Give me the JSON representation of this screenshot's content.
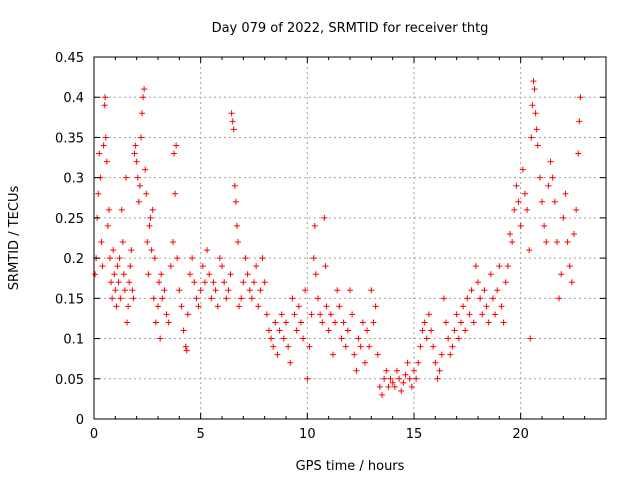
{
  "chart_data": {
    "type": "scatter",
    "title": "Day 079 of 2022, SRMTID for receiver thtg",
    "xlabel": "GPS time / hours",
    "ylabel": "SRMTID / TECUs",
    "xlim": [
      0,
      24
    ],
    "ylim": [
      0,
      0.45
    ],
    "x_ticks": [
      0,
      5,
      10,
      15,
      20
    ],
    "x_tick_labels": [
      "0",
      "5",
      "10",
      "15",
      "20"
    ],
    "y_ticks": [
      0,
      0.05,
      0.1,
      0.15,
      0.2,
      0.25,
      0.3,
      0.35,
      0.4,
      0.45
    ],
    "y_tick_labels": [
      "0",
      "0.05",
      "0.1",
      "0.15",
      "0.2",
      "0.25",
      "0.3",
      "0.35",
      "0.4",
      "0.45"
    ],
    "grid": true,
    "marker": "+",
    "series": [
      {
        "name": "SRMTID",
        "color": "#ff0000",
        "points": [
          [
            0.05,
            0.18
          ],
          [
            0.1,
            0.2
          ],
          [
            0.15,
            0.25
          ],
          [
            0.2,
            0.28
          ],
          [
            0.25,
            0.33
          ],
          [
            0.3,
            0.3
          ],
          [
            0.35,
            0.22
          ],
          [
            0.4,
            0.19
          ],
          [
            0.45,
            0.34
          ],
          [
            0.5,
            0.39
          ],
          [
            0.52,
            0.4
          ],
          [
            0.55,
            0.35
          ],
          [
            0.6,
            0.32
          ],
          [
            0.65,
            0.24
          ],
          [
            0.7,
            0.26
          ],
          [
            0.75,
            0.2
          ],
          [
            0.8,
            0.17
          ],
          [
            0.85,
            0.15
          ],
          [
            0.9,
            0.21
          ],
          [
            0.95,
            0.18
          ],
          [
            1.0,
            0.16
          ],
          [
            1.05,
            0.14
          ],
          [
            1.1,
            0.19
          ],
          [
            1.15,
            0.17
          ],
          [
            1.2,
            0.2
          ],
          [
            1.25,
            0.15
          ],
          [
            1.3,
            0.26
          ],
          [
            1.35,
            0.22
          ],
          [
            1.4,
            0.18
          ],
          [
            1.45,
            0.16
          ],
          [
            1.5,
            0.3
          ],
          [
            1.55,
            0.12
          ],
          [
            1.6,
            0.14
          ],
          [
            1.65,
            0.17
          ],
          [
            1.7,
            0.19
          ],
          [
            1.75,
            0.21
          ],
          [
            1.8,
            0.16
          ],
          [
            1.85,
            0.15
          ],
          [
            1.9,
            0.33
          ],
          [
            1.95,
            0.34
          ],
          [
            2.0,
            0.32
          ],
          [
            2.05,
            0.3
          ],
          [
            2.1,
            0.27
          ],
          [
            2.15,
            0.29
          ],
          [
            2.2,
            0.35
          ],
          [
            2.25,
            0.38
          ],
          [
            2.3,
            0.4
          ],
          [
            2.35,
            0.41
          ],
          [
            2.4,
            0.31
          ],
          [
            2.45,
            0.28
          ],
          [
            2.5,
            0.22
          ],
          [
            2.55,
            0.18
          ],
          [
            2.6,
            0.24
          ],
          [
            2.65,
            0.25
          ],
          [
            2.7,
            0.21
          ],
          [
            2.75,
            0.26
          ],
          [
            2.8,
            0.15
          ],
          [
            2.85,
            0.2
          ],
          [
            2.9,
            0.12
          ],
          [
            3.0,
            0.14
          ],
          [
            3.05,
            0.17
          ],
          [
            3.1,
            0.1
          ],
          [
            3.15,
            0.18
          ],
          [
            3.2,
            0.15
          ],
          [
            3.3,
            0.16
          ],
          [
            3.4,
            0.13
          ],
          [
            3.5,
            0.12
          ],
          [
            3.6,
            0.19
          ],
          [
            3.7,
            0.22
          ],
          [
            3.75,
            0.33
          ],
          [
            3.8,
            0.28
          ],
          [
            3.85,
            0.34
          ],
          [
            3.9,
            0.2
          ],
          [
            4.0,
            0.16
          ],
          [
            4.1,
            0.14
          ],
          [
            4.2,
            0.11
          ],
          [
            4.3,
            0.09
          ],
          [
            4.35,
            0.085
          ],
          [
            4.4,
            0.13
          ],
          [
            4.5,
            0.18
          ],
          [
            4.6,
            0.2
          ],
          [
            4.7,
            0.17
          ],
          [
            4.8,
            0.15
          ],
          [
            4.9,
            0.14
          ],
          [
            5.0,
            0.16
          ],
          [
            5.1,
            0.19
          ],
          [
            5.2,
            0.17
          ],
          [
            5.3,
            0.21
          ],
          [
            5.4,
            0.18
          ],
          [
            5.5,
            0.15
          ],
          [
            5.6,
            0.17
          ],
          [
            5.7,
            0.16
          ],
          [
            5.8,
            0.14
          ],
          [
            5.9,
            0.2
          ],
          [
            6.0,
            0.19
          ],
          [
            6.1,
            0.17
          ],
          [
            6.2,
            0.15
          ],
          [
            6.3,
            0.16
          ],
          [
            6.4,
            0.18
          ],
          [
            6.45,
            0.38
          ],
          [
            6.5,
            0.37
          ],
          [
            6.55,
            0.36
          ],
          [
            6.6,
            0.29
          ],
          [
            6.65,
            0.27
          ],
          [
            6.7,
            0.24
          ],
          [
            6.75,
            0.22
          ],
          [
            6.8,
            0.14
          ],
          [
            6.9,
            0.15
          ],
          [
            7.0,
            0.17
          ],
          [
            7.1,
            0.2
          ],
          [
            7.2,
            0.18
          ],
          [
            7.3,
            0.16
          ],
          [
            7.4,
            0.15
          ],
          [
            7.5,
            0.17
          ],
          [
            7.6,
            0.19
          ],
          [
            7.7,
            0.14
          ],
          [
            7.8,
            0.16
          ],
          [
            7.9,
            0.2
          ],
          [
            8.0,
            0.17
          ],
          [
            8.1,
            0.13
          ],
          [
            8.2,
            0.11
          ],
          [
            8.3,
            0.1
          ],
          [
            8.4,
            0.09
          ],
          [
            8.5,
            0.12
          ],
          [
            8.6,
            0.08
          ],
          [
            8.7,
            0.11
          ],
          [
            8.8,
            0.13
          ],
          [
            8.9,
            0.1
          ],
          [
            9.0,
            0.12
          ],
          [
            9.1,
            0.09
          ],
          [
            9.2,
            0.07
          ],
          [
            9.3,
            0.15
          ],
          [
            9.4,
            0.13
          ],
          [
            9.5,
            0.11
          ],
          [
            9.6,
            0.14
          ],
          [
            9.7,
            0.12
          ],
          [
            9.8,
            0.1
          ],
          [
            9.9,
            0.16
          ],
          [
            10.0,
            0.05
          ],
          [
            10.1,
            0.09
          ],
          [
            10.2,
            0.13
          ],
          [
            10.3,
            0.2
          ],
          [
            10.35,
            0.24
          ],
          [
            10.4,
            0.18
          ],
          [
            10.5,
            0.15
          ],
          [
            10.6,
            0.13
          ],
          [
            10.7,
            0.12
          ],
          [
            10.8,
            0.25
          ],
          [
            10.85,
            0.19
          ],
          [
            10.9,
            0.14
          ],
          [
            11.0,
            0.11
          ],
          [
            11.1,
            0.13
          ],
          [
            11.2,
            0.08
          ],
          [
            11.3,
            0.12
          ],
          [
            11.4,
            0.16
          ],
          [
            11.5,
            0.14
          ],
          [
            11.6,
            0.1
          ],
          [
            11.7,
            0.12
          ],
          [
            11.8,
            0.09
          ],
          [
            11.9,
            0.11
          ],
          [
            12.0,
            0.16
          ],
          [
            12.1,
            0.13
          ],
          [
            12.2,
            0.08
          ],
          [
            12.3,
            0.06
          ],
          [
            12.4,
            0.1
          ],
          [
            12.5,
            0.09
          ],
          [
            12.6,
            0.12
          ],
          [
            12.7,
            0.07
          ],
          [
            12.8,
            0.11
          ],
          [
            12.9,
            0.09
          ],
          [
            13.0,
            0.16
          ],
          [
            13.1,
            0.12
          ],
          [
            13.2,
            0.14
          ],
          [
            13.3,
            0.08
          ],
          [
            13.4,
            0.04
          ],
          [
            13.5,
            0.03
          ],
          [
            13.6,
            0.05
          ],
          [
            13.7,
            0.06
          ],
          [
            13.8,
            0.04
          ],
          [
            13.9,
            0.05
          ],
          [
            14.0,
            0.045
          ],
          [
            14.1,
            0.04
          ],
          [
            14.2,
            0.06
          ],
          [
            14.3,
            0.05
          ],
          [
            14.4,
            0.035
          ],
          [
            14.5,
            0.045
          ],
          [
            14.6,
            0.055
          ],
          [
            14.7,
            0.07
          ],
          [
            14.8,
            0.05
          ],
          [
            14.9,
            0.04
          ],
          [
            15.0,
            0.06
          ],
          [
            15.1,
            0.05
          ],
          [
            15.2,
            0.07
          ],
          [
            15.3,
            0.09
          ],
          [
            15.4,
            0.11
          ],
          [
            15.5,
            0.12
          ],
          [
            15.6,
            0.1
          ],
          [
            15.7,
            0.13
          ],
          [
            15.8,
            0.11
          ],
          [
            15.9,
            0.09
          ],
          [
            16.0,
            0.07
          ],
          [
            16.1,
            0.05
          ],
          [
            16.2,
            0.06
          ],
          [
            16.3,
            0.08
          ],
          [
            16.4,
            0.15
          ],
          [
            16.5,
            0.12
          ],
          [
            16.6,
            0.1
          ],
          [
            16.7,
            0.08
          ],
          [
            16.8,
            0.09
          ],
          [
            16.9,
            0.11
          ],
          [
            17.0,
            0.13
          ],
          [
            17.1,
            0.1
          ],
          [
            17.2,
            0.12
          ],
          [
            17.3,
            0.14
          ],
          [
            17.4,
            0.11
          ],
          [
            17.5,
            0.15
          ],
          [
            17.6,
            0.13
          ],
          [
            17.7,
            0.16
          ],
          [
            17.8,
            0.12
          ],
          [
            17.9,
            0.19
          ],
          [
            18.0,
            0.17
          ],
          [
            18.1,
            0.15
          ],
          [
            18.2,
            0.13
          ],
          [
            18.3,
            0.16
          ],
          [
            18.4,
            0.14
          ],
          [
            18.5,
            0.12
          ],
          [
            18.6,
            0.18
          ],
          [
            18.7,
            0.15
          ],
          [
            18.8,
            0.13
          ],
          [
            18.9,
            0.16
          ],
          [
            19.0,
            0.19
          ],
          [
            19.1,
            0.14
          ],
          [
            19.2,
            0.12
          ],
          [
            19.3,
            0.17
          ],
          [
            19.4,
            0.19
          ],
          [
            19.5,
            0.23
          ],
          [
            19.6,
            0.22
          ],
          [
            19.7,
            0.26
          ],
          [
            19.8,
            0.29
          ],
          [
            19.9,
            0.27
          ],
          [
            20.0,
            0.24
          ],
          [
            20.1,
            0.31
          ],
          [
            20.2,
            0.28
          ],
          [
            20.3,
            0.26
          ],
          [
            20.4,
            0.21
          ],
          [
            20.45,
            0.1
          ],
          [
            20.5,
            0.35
          ],
          [
            20.55,
            0.39
          ],
          [
            20.6,
            0.42
          ],
          [
            20.65,
            0.41
          ],
          [
            20.7,
            0.38
          ],
          [
            20.75,
            0.36
          ],
          [
            20.8,
            0.34
          ],
          [
            20.9,
            0.3
          ],
          [
            21.0,
            0.27
          ],
          [
            21.1,
            0.24
          ],
          [
            21.2,
            0.22
          ],
          [
            21.3,
            0.29
          ],
          [
            21.4,
            0.32
          ],
          [
            21.5,
            0.3
          ],
          [
            21.6,
            0.27
          ],
          [
            21.7,
            0.22
          ],
          [
            21.8,
            0.15
          ],
          [
            21.9,
            0.18
          ],
          [
            22.0,
            0.25
          ],
          [
            22.1,
            0.28
          ],
          [
            22.2,
            0.22
          ],
          [
            22.3,
            0.19
          ],
          [
            22.4,
            0.17
          ],
          [
            22.5,
            0.23
          ],
          [
            22.6,
            0.26
          ],
          [
            22.7,
            0.33
          ],
          [
            22.75,
            0.37
          ],
          [
            22.8,
            0.4
          ]
        ]
      }
    ]
  }
}
